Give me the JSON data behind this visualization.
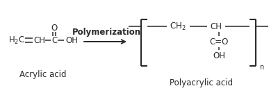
{
  "bg_color": "#ffffff",
  "text_color": "#2a2a2a",
  "figsize": [
    4.0,
    1.47
  ],
  "dpi": 100,
  "acrylic_label": "Acrylic acid",
  "product_label": "Polyacrylic acid",
  "arrow_label": "Polymerization",
  "line_color": "#2a2a2a",
  "font_size_main": 8.5,
  "font_size_label": 8.5,
  "font_size_small": 7.0,
  "font_size_arrow": 8.5
}
